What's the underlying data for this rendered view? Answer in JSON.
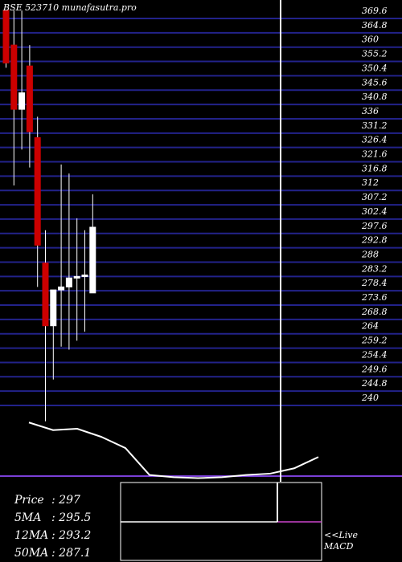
{
  "watermark": "BSE 523710  munafasutra.pro",
  "chart_data": [
    {
      "type": "candlestick",
      "ylim": [
        240,
        369.6
      ],
      "tick_labels": [
        "369.6",
        "364.8",
        "360",
        "355.2",
        "350.4",
        "345.6",
        "340.8",
        "336",
        "331.2",
        "326.4",
        "321.6",
        "316.8",
        "312",
        "307.2",
        "302.4",
        "297.6",
        "292.8",
        "288",
        "283.2",
        "278.4",
        "273.6",
        "268.8",
        "264",
        "259.2",
        "254.4",
        "249.6",
        "244.8",
        "240"
      ],
      "tick_values": [
        369.6,
        364.8,
        360,
        355.2,
        350.4,
        345.6,
        340.8,
        336,
        331.2,
        326.4,
        321.6,
        316.8,
        312,
        307.2,
        302.4,
        297.6,
        292.8,
        288,
        283.2,
        278.4,
        273.6,
        268.8,
        264,
        259.2,
        254.4,
        249.6,
        244.8,
        240
      ],
      "colors": {
        "up": "#ffffff",
        "down": "#cc0000",
        "grid": "#22228a"
      },
      "candles": [
        {
          "open": 369.6,
          "high": 369.6,
          "low": 350.4,
          "close": 352.0,
          "dir": "down"
        },
        {
          "open": 358.0,
          "high": 369.6,
          "low": 311.0,
          "close": 336.5,
          "dir": "down"
        },
        {
          "open": 336.5,
          "high": 369.6,
          "low": 323.0,
          "close": 342.0,
          "dir": "up"
        },
        {
          "open": 351.0,
          "high": 358.0,
          "low": 317.0,
          "close": 329.0,
          "dir": "down"
        },
        {
          "open": 327.0,
          "high": 334.0,
          "low": 277.0,
          "close": 291.0,
          "dir": "down"
        },
        {
          "open": 285.0,
          "high": 296.0,
          "low": 232.0,
          "close": 264.0,
          "dir": "down"
        },
        {
          "open": 264.0,
          "high": 276.0,
          "low": 246.0,
          "close": 276.0,
          "dir": "up"
        },
        {
          "open": 276.0,
          "high": 318.0,
          "low": 257.0,
          "close": 277.0,
          "dir": "up"
        },
        {
          "open": 277.0,
          "high": 315.0,
          "low": 256.0,
          "close": 280.0,
          "dir": "up"
        },
        {
          "open": 280.0,
          "high": 300.0,
          "low": 259.0,
          "close": 280.5,
          "dir": "up"
        },
        {
          "open": 280.5,
          "high": 296.0,
          "low": 262.0,
          "close": 281.0,
          "dir": "up"
        },
        {
          "open": 275.0,
          "high": 308.0,
          "low": 275.0,
          "close": 297.0,
          "dir": "up"
        }
      ]
    },
    {
      "type": "line",
      "series": [
        {
          "values": [
            0.62,
            0.45,
            0.48,
            0.3,
            0.05,
            -0.55,
            -0.6,
            -0.62,
            -0.6,
            -0.55,
            -0.52,
            -0.4,
            -0.15
          ]
        }
      ],
      "ylim": [
        -0.7,
        1.0
      ],
      "colors": {
        "line": "#ffffff",
        "zero": "#7a3fd6"
      }
    },
    {
      "type": "line",
      "title": "MACD",
      "colors": {
        "signal": "#ffffff",
        "macd": "#cc44cc"
      }
    }
  ],
  "stats": [
    {
      "label": "Price",
      "value": ": 297"
    },
    {
      "label": "5MA",
      "value": ": 295.5"
    },
    {
      "label": "12MA",
      "value": ": 293.2"
    },
    {
      "label": "50MA",
      "value": ": 287.1"
    }
  ],
  "live_label": "<<Live",
  "macd_label": "MACD"
}
